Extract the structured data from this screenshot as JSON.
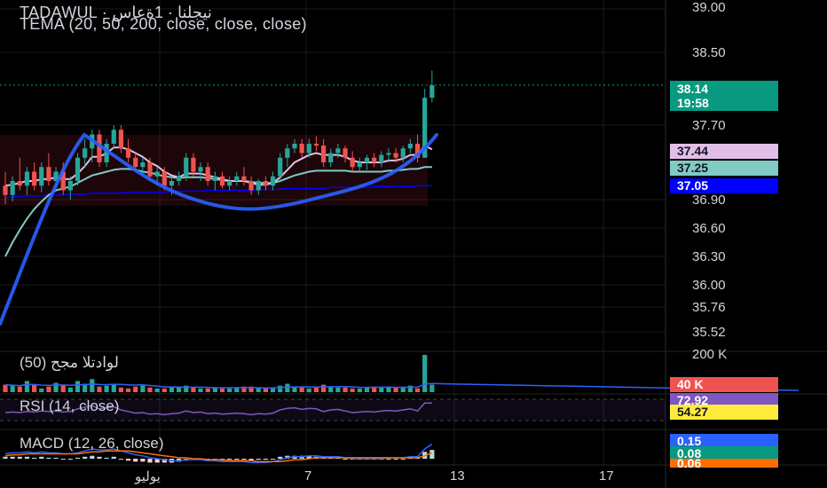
{
  "header": {
    "symbol_line": "TADAWUL · نيجلنا · 1ةعاس",
    "indicator_line": "TEMA (20, 50, 200, close, close, close)"
  },
  "volume_pane": {
    "label": "لوادتلا مجح (50)",
    "axis_label": "200 K",
    "badge": "40 K"
  },
  "rsi_pane": {
    "label": "RSI (14, close)",
    "badges": [
      "72.92",
      "54.27"
    ]
  },
  "macd_pane": {
    "label": "MACD (12, 26, close)",
    "badges": [
      "0.15",
      "0.08",
      "0.06"
    ]
  },
  "price_axis": {
    "ticks": [
      "39.00",
      "38.50",
      "37.70",
      "36.90",
      "36.60",
      "36.30",
      "36.00",
      "35.76",
      "35.52"
    ]
  },
  "price_badges": {
    "last_price": "38.14",
    "countdown": "19:58",
    "tema20": "37.44",
    "tema50": "37.25",
    "tema200": "37.05"
  },
  "time_axis": {
    "labels": [
      "يوليو",
      "7",
      "13",
      "17"
    ]
  },
  "colors": {
    "up": "#26a69a",
    "down": "#ef5350",
    "last_price_badge": "#089981",
    "tema20": "#e1bee7",
    "tema50": "#80cbc4",
    "tema200": "#0000ff",
    "drawn_curve": "#2962ff",
    "rsi": "#7e57c2",
    "macd": "#2962ff",
    "signal": "#ff6d00"
  },
  "chart_data": {
    "type": "candlestick",
    "title": "TADAWUL · نيجلنا · 1ةعاس",
    "ylim": [
      35.4,
      39.05
    ],
    "candles": [
      [
        37.05,
        37.2,
        36.85,
        36.95
      ],
      [
        36.95,
        37.15,
        36.88,
        37.1
      ],
      [
        37.1,
        37.35,
        37.0,
        37.05
      ],
      [
        37.05,
        37.25,
        36.95,
        37.2
      ],
      [
        37.2,
        37.3,
        37.0,
        37.05
      ],
      [
        37.05,
        37.3,
        36.98,
        37.25
      ],
      [
        37.25,
        37.4,
        37.05,
        37.1
      ],
      [
        37.1,
        37.25,
        37.0,
        37.2
      ],
      [
        37.2,
        37.3,
        36.95,
        37.0
      ],
      [
        37.0,
        37.15,
        36.9,
        37.1
      ],
      [
        37.1,
        37.4,
        37.05,
        37.35
      ],
      [
        37.35,
        37.55,
        37.25,
        37.45
      ],
      [
        37.45,
        37.65,
        37.3,
        37.6
      ],
      [
        37.6,
        37.65,
        37.25,
        37.3
      ],
      [
        37.3,
        37.55,
        37.25,
        37.5
      ],
      [
        37.5,
        37.7,
        37.45,
        37.65
      ],
      [
        37.65,
        37.7,
        37.4,
        37.45
      ],
      [
        37.45,
        37.55,
        37.3,
        37.35
      ],
      [
        37.35,
        37.4,
        37.2,
        37.25
      ],
      [
        37.25,
        37.35,
        37.15,
        37.3
      ],
      [
        37.3,
        37.35,
        37.1,
        37.15
      ],
      [
        37.15,
        37.25,
        37.05,
        37.2
      ],
      [
        37.2,
        37.25,
        37.0,
        37.05
      ],
      [
        37.05,
        37.15,
        36.95,
        37.1
      ],
      [
        37.1,
        37.2,
        37.05,
        37.15
      ],
      [
        37.15,
        37.4,
        37.1,
        37.35
      ],
      [
        37.35,
        37.4,
        37.15,
        37.2
      ],
      [
        37.2,
        37.3,
        37.1,
        37.25
      ],
      [
        37.25,
        37.3,
        37.05,
        37.1
      ],
      [
        37.1,
        37.2,
        37.0,
        37.15
      ],
      [
        37.15,
        37.2,
        37.02,
        37.05
      ],
      [
        37.05,
        37.15,
        37.0,
        37.1
      ],
      [
        37.1,
        37.2,
        37.05,
        37.15
      ],
      [
        37.15,
        37.25,
        37.05,
        37.1
      ],
      [
        37.1,
        37.15,
        36.95,
        37.0
      ],
      [
        37.0,
        37.12,
        36.95,
        37.1
      ],
      [
        37.1,
        37.15,
        37.0,
        37.05
      ],
      [
        37.05,
        37.2,
        37.0,
        37.15
      ],
      [
        37.15,
        37.4,
        37.1,
        37.35
      ],
      [
        37.35,
        37.5,
        37.25,
        37.45
      ],
      [
        37.45,
        37.55,
        37.4,
        37.5
      ],
      [
        37.5,
        37.55,
        37.35,
        37.4
      ],
      [
        37.4,
        37.55,
        37.35,
        37.5
      ],
      [
        37.5,
        37.58,
        37.42,
        37.48
      ],
      [
        37.48,
        37.55,
        37.25,
        37.3
      ],
      [
        37.3,
        37.45,
        37.25,
        37.4
      ],
      [
        37.4,
        37.5,
        37.35,
        37.45
      ],
      [
        37.45,
        37.48,
        37.3,
        37.35
      ],
      [
        37.35,
        37.42,
        37.2,
        37.25
      ],
      [
        37.25,
        37.35,
        37.2,
        37.3
      ],
      [
        37.3,
        37.38,
        37.22,
        37.35
      ],
      [
        37.35,
        37.4,
        37.25,
        37.3
      ],
      [
        37.3,
        37.42,
        37.25,
        37.38
      ],
      [
        37.38,
        37.45,
        37.3,
        37.4
      ],
      [
        37.4,
        37.45,
        37.3,
        37.35
      ],
      [
        37.35,
        37.48,
        37.3,
        37.45
      ],
      [
        37.45,
        37.55,
        37.4,
        37.5
      ],
      [
        37.5,
        37.6,
        37.3,
        37.35
      ],
      [
        37.35,
        38.1,
        37.35,
        38.0
      ],
      [
        38.0,
        38.3,
        37.95,
        38.14
      ]
    ],
    "tema20": [
      37.05,
      37.06,
      37.08,
      37.1,
      37.1,
      37.12,
      37.12,
      37.14,
      37.12,
      37.12,
      37.18,
      37.26,
      37.36,
      37.36,
      37.4,
      37.46,
      37.46,
      37.44,
      37.4,
      37.36,
      37.3,
      37.26,
      37.2,
      37.16,
      37.14,
      37.18,
      37.18,
      37.18,
      37.16,
      37.14,
      37.12,
      37.1,
      37.1,
      37.1,
      37.08,
      37.06,
      37.06,
      37.08,
      37.14,
      37.22,
      37.3,
      37.34,
      37.38,
      37.4,
      37.38,
      37.38,
      37.38,
      37.36,
      37.32,
      37.3,
      37.3,
      37.3,
      37.3,
      37.32,
      37.32,
      37.34,
      37.38,
      37.38,
      37.48,
      37.44
    ],
    "tema50": [
      36.3,
      36.45,
      36.58,
      36.7,
      36.8,
      36.88,
      36.95,
      37.0,
      37.02,
      37.04,
      37.08,
      37.12,
      37.16,
      37.18,
      37.2,
      37.22,
      37.23,
      37.23,
      37.22,
      37.2,
      37.19,
      37.17,
      37.15,
      37.14,
      37.13,
      37.14,
      37.14,
      37.14,
      37.13,
      37.12,
      37.11,
      37.1,
      37.1,
      37.1,
      37.09,
      37.08,
      37.08,
      37.08,
      37.1,
      37.13,
      37.16,
      37.18,
      37.2,
      37.21,
      37.21,
      37.21,
      37.21,
      37.21,
      37.2,
      37.2,
      37.2,
      37.2,
      37.2,
      37.21,
      37.21,
      37.22,
      37.23,
      37.23,
      37.25,
      37.25
    ],
    "tema200": [
      36.92,
      36.93,
      36.93,
      36.94,
      36.94,
      36.94,
      36.95,
      36.95,
      36.95,
      36.96,
      36.96,
      36.96,
      36.97,
      36.97,
      36.97,
      36.97,
      36.97,
      36.98,
      36.98,
      36.98,
      36.98,
      36.98,
      36.98,
      36.99,
      36.99,
      36.99,
      36.99,
      36.99,
      37.0,
      37.0,
      37.0,
      37.0,
      37.0,
      37.0,
      37.0,
      37.01,
      37.01,
      37.01,
      37.01,
      37.02,
      37.02,
      37.02,
      37.02,
      37.02,
      37.02,
      37.03,
      37.03,
      37.03,
      37.03,
      37.03,
      37.03,
      37.04,
      37.04,
      37.04,
      37.04,
      37.04,
      37.04,
      37.05,
      37.05,
      37.05
    ],
    "volume": [
      40,
      35,
      30,
      60,
      40,
      20,
      30,
      50,
      40,
      25,
      60,
      45,
      70,
      30,
      35,
      40,
      25,
      20,
      30,
      35,
      25,
      20,
      20,
      30,
      25,
      35,
      25,
      20,
      20,
      25,
      20,
      20,
      25,
      30,
      30,
      25,
      20,
      20,
      35,
      45,
      30,
      25,
      20,
      25,
      40,
      30,
      25,
      25,
      20,
      20,
      25,
      30,
      25,
      30,
      25,
      30,
      35,
      20,
      200,
      40
    ],
    "rsi": [
      55,
      56,
      55,
      57,
      56,
      58,
      57,
      58,
      56,
      57,
      62,
      65,
      68,
      62,
      64,
      66,
      60,
      57,
      54,
      55,
      52,
      53,
      51,
      53,
      54,
      58,
      55,
      56,
      53,
      54,
      52,
      53,
      54,
      53,
      51,
      53,
      52,
      54,
      60,
      63,
      64,
      61,
      63,
      62,
      57,
      60,
      61,
      58,
      55,
      56,
      57,
      56,
      58,
      59,
      58,
      60,
      62,
      58,
      72.92,
      72.92
    ],
    "macd": [
      0.05,
      0.06,
      0.06,
      0.07,
      0.06,
      0.07,
      0.06,
      0.06,
      0.05,
      0.05,
      0.06,
      0.08,
      0.1,
      0.09,
      0.09,
      0.1,
      0.08,
      0.06,
      0.04,
      0.03,
      0.01,
      0.0,
      -0.01,
      -0.02,
      -0.02,
      -0.01,
      -0.01,
      -0.01,
      -0.02,
      -0.02,
      -0.03,
      -0.03,
      -0.03,
      -0.03,
      -0.04,
      -0.04,
      -0.04,
      -0.03,
      -0.01,
      0.01,
      0.02,
      0.02,
      0.03,
      0.03,
      0.02,
      0.02,
      0.02,
      0.01,
      0.0,
      0.0,
      0.0,
      0.0,
      0.0,
      0.01,
      0.01,
      0.01,
      0.02,
      0.02,
      0.1,
      0.15
    ],
    "signal": [
      0.03,
      0.04,
      0.04,
      0.05,
      0.05,
      0.05,
      0.05,
      0.05,
      0.05,
      0.05,
      0.05,
      0.06,
      0.07,
      0.07,
      0.08,
      0.08,
      0.08,
      0.08,
      0.07,
      0.06,
      0.05,
      0.04,
      0.03,
      0.02,
      0.01,
      0.01,
      0.0,
      0.0,
      -0.01,
      -0.01,
      -0.01,
      -0.02,
      -0.02,
      -0.02,
      -0.02,
      -0.03,
      -0.03,
      -0.03,
      -0.03,
      -0.02,
      -0.01,
      -0.01,
      0.0,
      0.01,
      0.01,
      0.01,
      0.01,
      0.01,
      0.01,
      0.01,
      0.01,
      0.01,
      0.01,
      0.01,
      0.01,
      0.01,
      0.01,
      0.01,
      0.03,
      0.06
    ]
  }
}
